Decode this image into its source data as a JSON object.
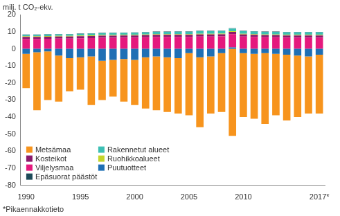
{
  "chart_data": {
    "type": "bar",
    "stacked": true,
    "ylabel": "milj. t CO₂-ekv.",
    "note": "*Pikaennakkotieto",
    "categories": [
      "1990",
      null,
      null,
      null,
      null,
      "1995",
      null,
      null,
      null,
      null,
      "2000",
      null,
      null,
      null,
      null,
      "2005",
      null,
      null,
      null,
      null,
      "2010",
      null,
      null,
      null,
      null,
      null,
      null,
      "2017*"
    ],
    "series": [
      {
        "name": "Puutuotteet",
        "color": "#1f6fb4",
        "values": [
          -3,
          -2,
          -1.5,
          -4,
          -5.5,
          -5,
          -4.5,
          -7,
          -6.5,
          -6,
          -6.5,
          -5,
          -4.5,
          -5,
          -5.5,
          -2.5,
          -5,
          -4.5,
          -2.5,
          0.8,
          -2.5,
          -3,
          -2.5,
          -3,
          -3.5,
          -4,
          -4.5,
          -3.5
        ]
      },
      {
        "name": "Metsämaa",
        "color": "#f7941d",
        "values": [
          -20,
          -34,
          -28.5,
          -27,
          -19.5,
          -19,
          -28.5,
          -23,
          -21.5,
          -25,
          -26.5,
          -30,
          -31.5,
          -32,
          -32.5,
          -36.5,
          -41,
          -33.5,
          -34.5,
          -51,
          -37.5,
          -38,
          -41.5,
          -36,
          -38.5,
          -36,
          -33.5,
          -34.5
        ]
      },
      {
        "name": "Viljelysmaa",
        "color": "#e5197d",
        "values": [
          5.8,
          5.8,
          5.9,
          6,
          6,
          6.2,
          6.3,
          6.5,
          6.5,
          6.6,
          6.6,
          6.8,
          7,
          7,
          7,
          7,
          7.2,
          7.2,
          7.3,
          7.8,
          7.2,
          7,
          6.8,
          6.8,
          6.6,
          6.6,
          6.6,
          6.6
        ]
      },
      {
        "name": "Kosteikot",
        "color": "#8b1a6b",
        "values": [
          1.2,
          1.2,
          1.2,
          1.2,
          1.2,
          1.2,
          1.2,
          1.2,
          1.2,
          1.2,
          1.2,
          1.2,
          1.2,
          1.2,
          1.2,
          1.2,
          1.2,
          1.2,
          1.2,
          1.3,
          1.2,
          1.2,
          1.2,
          1.2,
          1.2,
          1.2,
          1.2,
          1.2
        ]
      },
      {
        "name": "Ruohikkoalueet",
        "color": "#c5d52b",
        "values": [
          0.4,
          0.4,
          0.4,
          0.4,
          0.4,
          0.4,
          0.4,
          0.4,
          0.4,
          0.4,
          0.4,
          0.4,
          0.4,
          0.4,
          0.4,
          0.4,
          0.4,
          0.4,
          0.4,
          0.4,
          0.4,
          0.4,
          0.4,
          0.4,
          0.4,
          0.4,
          0.4,
          0.4
        ]
      },
      {
        "name": "Rakennetut alueet",
        "color": "#3cbfb4",
        "values": [
          0.8,
          0.8,
          0.9,
          0.9,
          0.9,
          1,
          1,
          1,
          1.1,
          1.1,
          1.2,
          1.2,
          1.3,
          1.3,
          1.4,
          1.4,
          1.5,
          1.5,
          1.5,
          1.6,
          1.5,
          1.5,
          1.5,
          1.5,
          1.5,
          1.5,
          1.5,
          1.5
        ]
      },
      {
        "name": "Epäsuorat päästöt",
        "color": "#1c4a58",
        "values": [
          0.2,
          0.2,
          0.2,
          0.2,
          0.2,
          0.2,
          0.2,
          0.2,
          0.2,
          0.2,
          0.2,
          0.2,
          0.2,
          0.2,
          0.2,
          0.2,
          0.2,
          0.2,
          0.2,
          0.2,
          0.2,
          0.2,
          0.2,
          0.2,
          0.2,
          0.2,
          0.2,
          0.2
        ]
      }
    ],
    "ylim": [
      -80,
      20
    ],
    "yticks": [
      -80,
      -70,
      -60,
      -50,
      -40,
      -30,
      -20,
      -10,
      0,
      10,
      20
    ],
    "grid": false,
    "legend": "bottom-left"
  }
}
